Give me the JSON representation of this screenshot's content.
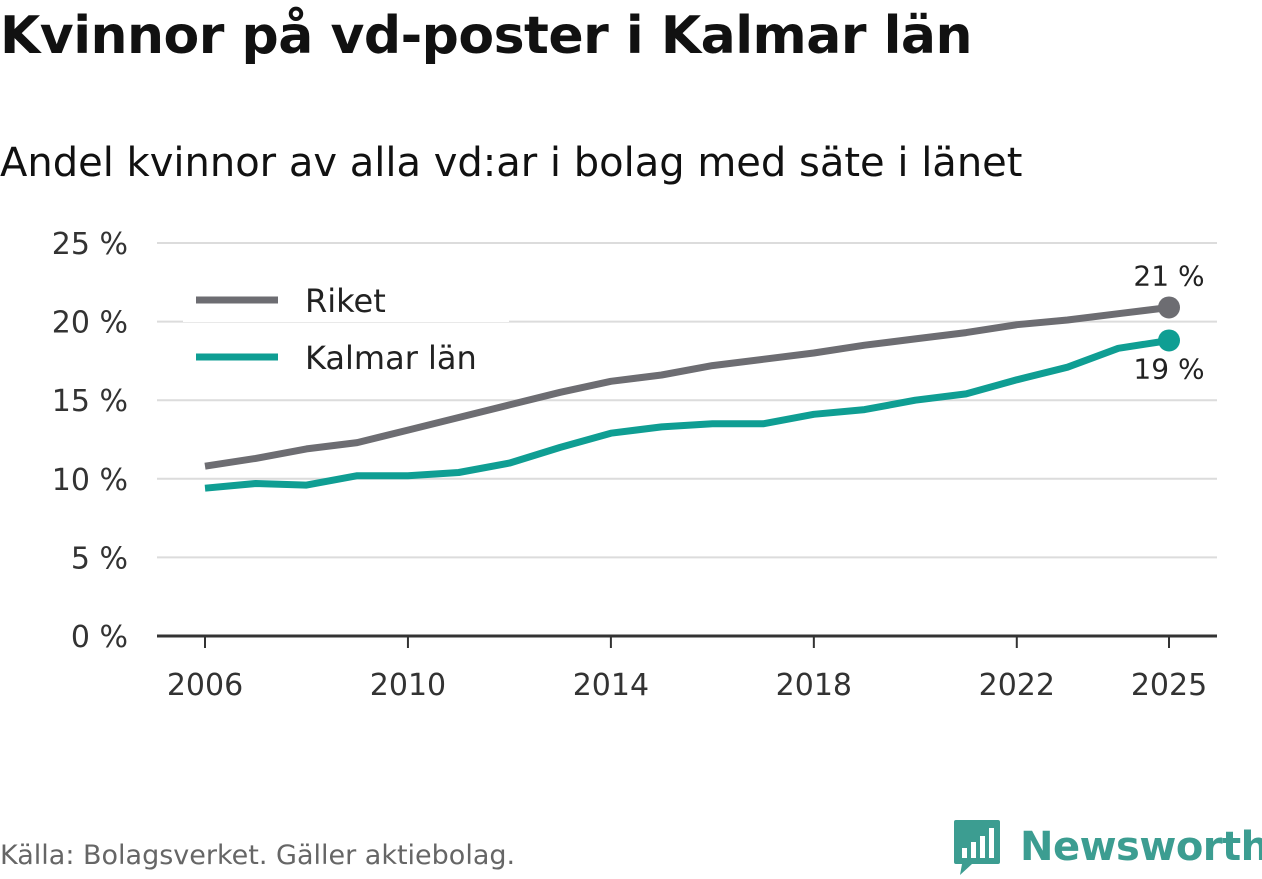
{
  "title": "Kvinnor på vd-poster i Kalmar län",
  "subtitle": "Andel kvinnor av alla vd:ar i bolag med säte i länet",
  "source": "Källa: Bolagsverket. Gäller aktiebolag.",
  "brand": "Newsworthy",
  "chart_data": {
    "type": "line",
    "title": "Kvinnor på vd-poster i Kalmar län",
    "subtitle": "Andel kvinnor av alla vd:ar i bolag med säte i länet",
    "xlabel": "",
    "ylabel": "",
    "x": [
      2006,
      2007,
      2008,
      2009,
      2010,
      2011,
      2012,
      2013,
      2014,
      2015,
      2016,
      2017,
      2018,
      2019,
      2020,
      2021,
      2022,
      2023,
      2024,
      2025
    ],
    "x_ticks": [
      2006,
      2010,
      2014,
      2018,
      2022,
      2025
    ],
    "x_tick_labels": [
      "2006",
      "2010",
      "2014",
      "2018",
      "2022",
      "2025"
    ],
    "ylim": [
      0,
      25
    ],
    "y_ticks": [
      0,
      5,
      10,
      15,
      20,
      25
    ],
    "y_tick_labels": [
      "0 %",
      "5 %",
      "10 %",
      "15 %",
      "20 %",
      "25 %"
    ],
    "grid": true,
    "legend_position": "top-left",
    "series": [
      {
        "name": "Riket",
        "color": "#6d6d72",
        "values": [
          10.8,
          11.3,
          11.9,
          12.3,
          13.1,
          13.9,
          14.7,
          15.5,
          16.2,
          16.6,
          17.2,
          17.6,
          18.0,
          18.5,
          18.9,
          19.3,
          19.8,
          20.1,
          20.5,
          20.9
        ],
        "end_label": "21 %",
        "end_label_position": "above"
      },
      {
        "name": "Kalmar län",
        "color": "#0f9e93",
        "values": [
          9.4,
          9.7,
          9.6,
          10.2,
          10.2,
          10.4,
          11.0,
          12.0,
          12.9,
          13.3,
          13.5,
          13.5,
          14.1,
          14.4,
          15.0,
          15.4,
          16.3,
          17.1,
          18.3,
          18.8
        ],
        "end_label": "19 %",
        "end_label_position": "below"
      }
    ]
  }
}
